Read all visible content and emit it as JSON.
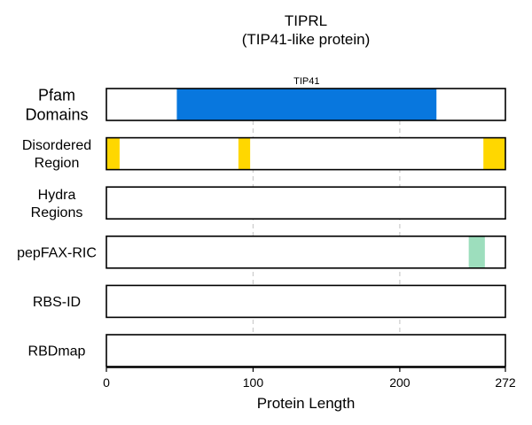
{
  "chart_data": {
    "type": "bar",
    "title": "TIPRL",
    "subtitle": "(TIP41-like protein)",
    "xlabel": "Protein Length",
    "xlim": [
      0,
      272
    ],
    "xticks": [
      0,
      100,
      200,
      272
    ],
    "grid_x": [
      100,
      200
    ],
    "tracks": [
      {
        "name": "Pfam Domains",
        "label_lines": [
          "Pfam",
          "Domains"
        ],
        "segments": [
          {
            "start": 48,
            "end": 225,
            "label": "TIP41",
            "color": "#0877DE"
          }
        ]
      },
      {
        "name": "Disordered Region",
        "label_lines": [
          "Disordered",
          "Region"
        ],
        "segments": [
          {
            "start": 0,
            "end": 9,
            "color": "#FFD700"
          },
          {
            "start": 90,
            "end": 98,
            "color": "#FFD700"
          },
          {
            "start": 257,
            "end": 272,
            "color": "#FFD700"
          }
        ]
      },
      {
        "name": "Hydra Regions",
        "label_lines": [
          "Hydra",
          "Regions"
        ],
        "segments": []
      },
      {
        "name": "pepFAX-RIC",
        "label_lines": [
          "pepFAX-RIC"
        ],
        "segments": [
          {
            "start": 247,
            "end": 258,
            "color": "#9DDEBD"
          }
        ]
      },
      {
        "name": "RBS-ID",
        "label_lines": [
          "RBS-ID"
        ],
        "segments": []
      },
      {
        "name": "RBDmap",
        "label_lines": [
          "RBDmap"
        ],
        "segments": []
      }
    ]
  }
}
